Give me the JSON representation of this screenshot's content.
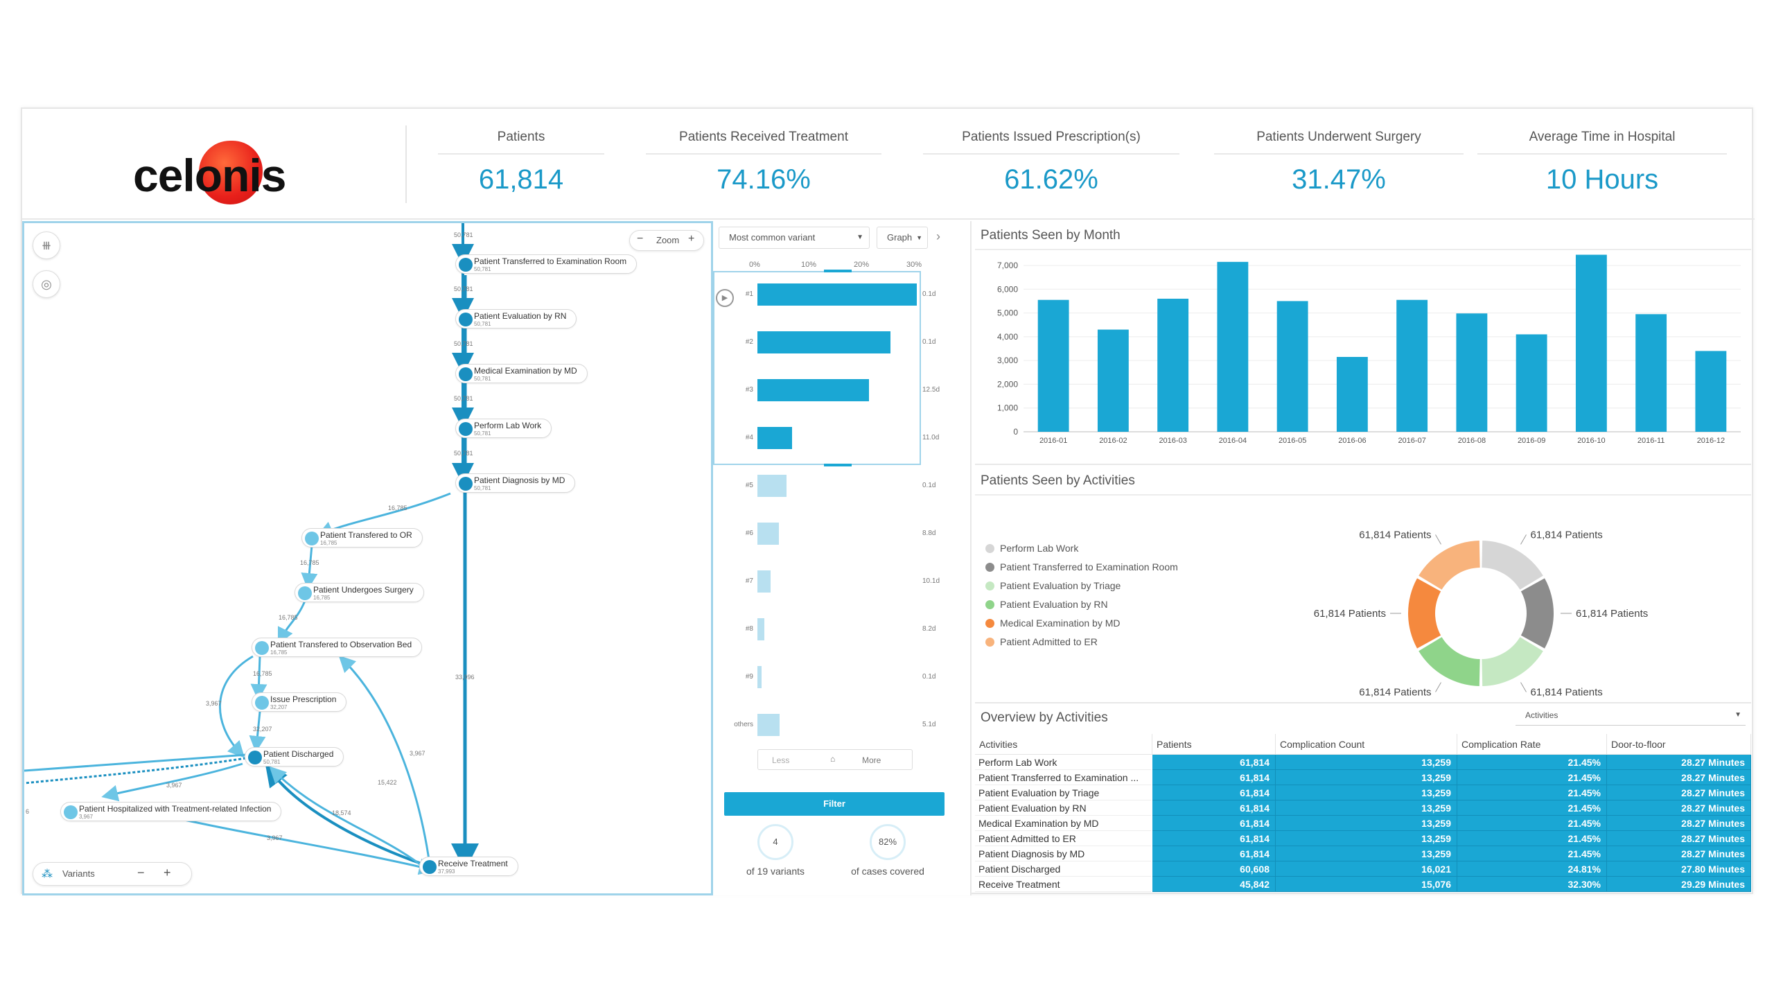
{
  "logo": {
    "text": "celonis"
  },
  "kpis": [
    {
      "label": "Patients",
      "value": "61,814"
    },
    {
      "label": "Patients Received Treatment",
      "value": "74.16%"
    },
    {
      "label": "Patients Issued Prescription(s)",
      "value": "61.62%"
    },
    {
      "label": "Patients Underwent Surgery",
      "value": "31.47%"
    },
    {
      "label": "Average Time in Hospital",
      "value": "10 Hours"
    }
  ],
  "process_map": {
    "zoom_label": "Zoom",
    "zoom_minus": "−",
    "zoom_plus": "+",
    "tool_icons": [
      "grid-icon",
      "eye-off-icon"
    ],
    "variants_label": "Variants",
    "variants_minus": "−",
    "variants_plus": "+",
    "nodes": [
      {
        "name": "Patient Transferred to Examination Room",
        "count": "50,781"
      },
      {
        "name": "Patient Evaluation by RN",
        "count": "50,781"
      },
      {
        "name": "Medical Examination by MD",
        "count": "50,781"
      },
      {
        "name": "Perform Lab Work",
        "count": "50,781"
      },
      {
        "name": "Patient Diagnosis by MD",
        "count": "50,781"
      },
      {
        "name": "Patient Transfered to OR",
        "count": "16,785"
      },
      {
        "name": "Patient Undergoes Surgery",
        "count": "16,785"
      },
      {
        "name": "Patient Transfered to Observation Bed",
        "count": "16,785"
      },
      {
        "name": "Issue Prescription",
        "count": "32,207"
      },
      {
        "name": "Patient Discharged",
        "count": "50,781"
      },
      {
        "name": "Patient Hospitalized with Treatment-related Infection",
        "count": "3,967"
      },
      {
        "name": "Receive Treatment",
        "count": "37,993"
      }
    ],
    "edge_labels": [
      "50,781",
      "50,781",
      "50,781",
      "50,781",
      "50,781",
      "16,785",
      "16,785",
      "16,785",
      "16,785",
      "32,207",
      "3,967",
      "3,967",
      "3,967",
      "33,996",
      "15,422",
      "18,574",
      "3,967",
      "6"
    ]
  },
  "variant_explorer": {
    "dropdown_label": "Most common variant",
    "graph_label": "Graph",
    "axis_ticks": [
      "0%",
      "10%",
      "20%",
      "30%"
    ],
    "rows": [
      {
        "label": "#1",
        "pct": 30,
        "duration": "0.1d",
        "selected": true
      },
      {
        "label": "#2",
        "pct": 25,
        "duration": "0.1d",
        "selected": true
      },
      {
        "label": "#3",
        "pct": 21,
        "duration": "12.5d",
        "selected": true
      },
      {
        "label": "#4",
        "pct": 6.5,
        "duration": "11.0d",
        "selected": true
      },
      {
        "label": "#5",
        "pct": 5.5,
        "duration": "0.1d",
        "selected": false
      },
      {
        "label": "#6",
        "pct": 4,
        "duration": "8.8d",
        "selected": false
      },
      {
        "label": "#7",
        "pct": 2.5,
        "duration": "10.1d",
        "selected": false
      },
      {
        "label": "#8",
        "pct": 1.3,
        "duration": "8.2d",
        "selected": false
      },
      {
        "label": "#9",
        "pct": 0.8,
        "duration": "0.1d",
        "selected": false
      },
      {
        "label": "others",
        "pct": 4.2,
        "duration": "5.1d",
        "selected": false
      }
    ],
    "less_label": "Less",
    "more_label": "More",
    "filter_label": "Filter",
    "variant_count": "4",
    "variant_caption": "of 19 variants",
    "coverage": "82%",
    "coverage_caption": "of cases covered"
  },
  "chart_data": [
    {
      "type": "bar",
      "title": "Patients Seen by Month",
      "categories": [
        "2016-01",
        "2016-02",
        "2016-03",
        "2016-04",
        "2016-05",
        "2016-06",
        "2016-07",
        "2016-08",
        "2016-09",
        "2016-10",
        "2016-11",
        "2016-12"
      ],
      "values": [
        5550,
        4300,
        5600,
        7150,
        5500,
        3150,
        5550,
        4980,
        4100,
        7450,
        4950,
        3400
      ],
      "ylim": [
        0,
        7000
      ],
      "yticks": [
        "0",
        "1,000",
        "2,000",
        "3,000",
        "4,000",
        "5,000",
        "6,000",
        "7,000"
      ],
      "color": "#1aa7d4"
    },
    {
      "type": "pie",
      "title": "Patients Seen by Activities",
      "slices": [
        {
          "label": "Perform Lab Work",
          "value": 61814,
          "display": "61,814 Patients",
          "color": "#d6d6d6"
        },
        {
          "label": "Patient Transferred to Examination Room",
          "value": 61814,
          "display": "61,814 Patients",
          "color": "#8c8c8c"
        },
        {
          "label": "Patient Evaluation by Triage",
          "value": 61814,
          "display": "61,814 Patients",
          "color": "#c5e8c2"
        },
        {
          "label": "Patient Evaluation by RN",
          "value": 61814,
          "display": "61,814 Patients",
          "color": "#8fd48a"
        },
        {
          "label": "Medical Examination by MD",
          "value": 61814,
          "display": "61,814 Patients",
          "color": "#f5893e"
        },
        {
          "label": "Patient Admitted to ER",
          "value": 61814,
          "display": "61,814 Patients",
          "color": "#f8b37c"
        }
      ]
    }
  ],
  "overview": {
    "title": "Overview by Activities",
    "dropdown": "Activities",
    "columns": [
      "Activities",
      "Patients",
      "Complication Count",
      "Complication Rate",
      "Door-to-floor"
    ],
    "rows": [
      [
        "Perform Lab Work",
        "61,814",
        "13,259",
        "21.45%",
        "28.27 Minutes"
      ],
      [
        "Patient Transferred to Examination ...",
        "61,814",
        "13,259",
        "21.45%",
        "28.27 Minutes"
      ],
      [
        "Patient Evaluation by Triage",
        "61,814",
        "13,259",
        "21.45%",
        "28.27 Minutes"
      ],
      [
        "Patient Evaluation by RN",
        "61,814",
        "13,259",
        "21.45%",
        "28.27 Minutes"
      ],
      [
        "Medical Examination by MD",
        "61,814",
        "13,259",
        "21.45%",
        "28.27 Minutes"
      ],
      [
        "Patient Admitted to ER",
        "61,814",
        "13,259",
        "21.45%",
        "28.27 Minutes"
      ],
      [
        "Patient Diagnosis by MD",
        "61,814",
        "13,259",
        "21.45%",
        "28.27 Minutes"
      ],
      [
        "Patient Discharged",
        "60,608",
        "16,021",
        "24.81%",
        "27.80 Minutes"
      ],
      [
        "Receive Treatment",
        "45,842",
        "15,076",
        "32.30%",
        "29.29 Minutes"
      ]
    ]
  }
}
